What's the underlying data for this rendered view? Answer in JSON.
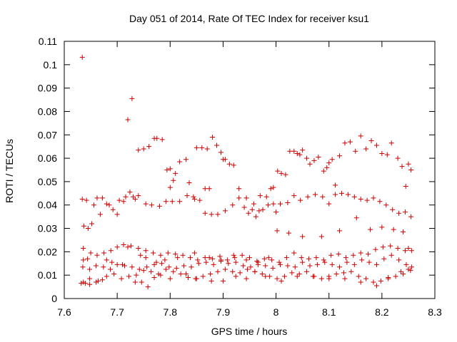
{
  "chart_data": {
    "type": "scatter",
    "title": "Day 051 of 2014, Rate Of TEC Index for receiver ksu1",
    "xlabel": "GPS time / hours",
    "ylabel": "ROTI / TECUs",
    "xlim": [
      7.6,
      8.3
    ],
    "ylim": [
      0,
      0.11
    ],
    "x_ticks": [
      7.6,
      7.7,
      7.8,
      7.9,
      8.0,
      8.1,
      8.2,
      8.3
    ],
    "x_tick_labels": [
      "7.6",
      "7.7",
      "7.8",
      "7.9",
      "8",
      "8.1",
      "8.2",
      "8.3"
    ],
    "y_ticks": [
      0,
      0.01,
      0.02,
      0.03,
      0.04,
      0.05,
      0.06,
      0.07,
      0.08,
      0.09,
      0.1,
      0.11
    ],
    "y_tick_labels": [
      "0",
      "0.01",
      "0.02",
      "0.03",
      "0.04",
      "0.05",
      "0.06",
      "0.07",
      "0.08",
      "0.09",
      "0.1",
      "0.11"
    ],
    "grid": false,
    "marker": "+",
    "color": "#cc0000",
    "series": [
      {
        "name": "ROTI",
        "x": [
          7.634,
          7.637,
          7.645,
          7.652,
          7.662,
          7.672,
          7.685,
          7.7,
          7.712,
          7.72,
          7.728,
          7.734,
          7.74,
          7.75,
          7.76,
          7.77,
          7.775,
          7.785,
          7.794,
          7.8,
          7.8,
          7.806,
          7.81,
          7.818,
          7.83,
          7.836,
          7.844,
          7.85,
          7.86,
          7.866,
          7.87,
          7.874,
          7.88,
          7.888,
          7.896,
          7.9,
          7.904,
          7.912,
          7.92,
          7.93,
          7.94,
          7.948,
          7.955,
          7.962,
          7.968,
          7.975,
          7.985,
          7.99,
          7.995,
          8.0,
          8.003,
          8.01,
          8.018,
          8.026,
          8.034,
          8.04,
          8.045,
          8.05,
          8.058,
          8.064,
          8.072,
          8.08,
          8.09,
          8.096,
          8.1,
          8.106,
          8.112,
          8.12,
          8.13,
          8.14,
          8.15,
          8.16,
          8.17,
          8.18,
          8.19,
          8.2,
          8.21,
          8.218,
          8.23,
          8.238,
          8.245,
          8.25,
          8.255,
          7.634,
          7.642,
          7.656,
          7.668,
          7.68,
          7.692,
          7.704,
          7.716,
          7.724,
          7.73,
          7.74,
          7.754,
          7.765,
          7.78,
          7.792,
          7.804,
          7.818,
          7.832,
          7.846,
          7.856,
          7.866,
          7.878,
          7.89,
          7.904,
          7.918,
          7.93,
          7.944,
          7.958,
          7.97,
          7.982,
          7.995,
          8.008,
          8.022,
          8.034,
          8.046,
          8.06,
          8.074,
          8.088,
          8.1,
          8.112,
          8.124,
          8.136,
          8.148,
          8.16,
          8.172,
          8.184,
          8.196,
          8.208,
          8.22,
          8.232,
          8.244,
          8.255,
          7.636,
          7.65,
          7.662,
          7.675,
          7.688,
          7.7,
          7.712,
          7.726,
          7.74,
          7.754,
          7.768,
          7.782,
          7.796,
          7.81,
          7.824,
          7.838,
          7.852,
          7.866,
          7.88,
          7.894,
          7.908,
          7.922,
          7.936,
          7.95,
          7.964,
          7.978,
          7.992,
          8.006,
          8.02,
          8.034,
          8.048,
          8.062,
          8.076,
          8.09,
          8.104,
          8.118,
          8.132,
          8.146,
          8.16,
          8.174,
          8.188,
          8.202,
          8.216,
          8.23,
          8.244,
          8.256,
          7.635,
          7.648,
          7.66,
          7.674,
          7.687,
          7.7,
          7.714,
          7.728,
          7.742,
          7.756,
          7.77,
          7.784,
          7.798,
          7.812,
          7.826,
          7.84,
          7.854,
          7.868,
          7.882,
          7.896,
          7.91,
          7.924,
          7.938,
          7.952,
          7.966,
          7.98,
          7.994,
          8.008,
          8.022,
          8.036,
          8.05,
          8.064,
          8.078,
          8.092,
          8.106,
          8.12,
          8.134,
          8.148,
          8.162,
          8.176,
          8.19,
          8.204,
          8.218,
          8.232,
          8.246,
          8.256,
          7.636,
          7.648,
          7.664,
          7.68,
          7.694,
          7.708,
          7.722,
          7.736,
          7.75,
          7.764,
          7.778,
          7.792,
          7.806,
          7.82,
          7.834,
          7.848,
          7.862,
          7.876,
          7.89,
          7.904,
          7.918,
          7.932,
          7.946,
          7.96,
          7.974,
          7.988,
          8.002,
          8.016,
          8.03,
          8.044,
          8.058,
          8.072,
          8.086,
          8.1,
          8.114,
          8.128,
          8.142,
          8.156,
          8.17,
          8.184,
          8.198,
          8.212,
          8.226,
          8.24,
          8.254,
          7.632,
          7.64,
          7.648,
          7.66,
          7.672,
          7.72,
          7.734,
          7.746,
          7.758,
          7.77,
          7.782,
          7.8,
          7.83,
          7.85,
          7.878,
          7.9,
          7.924,
          7.944,
          7.96,
          7.98,
          8.01,
          8.04,
          8.07,
          8.1,
          8.13,
          8.16,
          8.19,
          8.212,
          8.236,
          8.25,
          7.636,
          7.644,
          7.68,
          7.69,
          7.71,
          7.744,
          7.754,
          7.774,
          7.79,
          7.814,
          7.846,
          7.874,
          7.896,
          7.92,
          7.944,
          7.966,
          7.986,
          8.002,
          8.024,
          8.05,
          8.086,
          8.12,
          8.152,
          8.178,
          8.2,
          8.222,
          8.24,
          8.25
        ],
        "y": [
          0.1032,
          0.031,
          0.03,
          0.032,
          0.043,
          0.043,
          0.04,
          0.036,
          0.0415,
          0.0765,
          0.0855,
          0.0425,
          0.0635,
          0.064,
          0.065,
          0.0685,
          0.0685,
          0.068,
          0.055,
          0.0475,
          0.0555,
          0.0505,
          0.0535,
          0.0585,
          0.0595,
          0.0495,
          0.0435,
          0.0645,
          0.0645,
          0.047,
          0.064,
          0.047,
          0.069,
          0.0655,
          0.0625,
          0.0595,
          0.0595,
          0.0575,
          0.057,
          0.047,
          0.039,
          0.0365,
          0.038,
          0.035,
          0.0375,
          0.038,
          0.04,
          0.047,
          0.0475,
          0.037,
          0.0545,
          0.0535,
          0.053,
          0.063,
          0.063,
          0.062,
          0.0615,
          0.0635,
          0.06,
          0.0575,
          0.059,
          0.0605,
          0.0545,
          0.056,
          0.058,
          0.0595,
          0.0485,
          0.061,
          0.0665,
          0.067,
          0.063,
          0.0695,
          0.064,
          0.0675,
          0.0655,
          0.062,
          0.0615,
          0.0665,
          0.06,
          0.0565,
          0.048,
          0.0575,
          0.055,
          0.0425,
          0.042,
          0.04,
          0.036,
          0.0405,
          0.038,
          0.042,
          0.0435,
          0.0455,
          0.0435,
          0.044,
          0.0405,
          0.04,
          0.0395,
          0.0415,
          0.0415,
          0.0415,
          0.044,
          0.0425,
          0.042,
          0.0365,
          0.036,
          0.036,
          0.0375,
          0.04,
          0.043,
          0.043,
          0.0405,
          0.044,
          0.0435,
          0.0405,
          0.0405,
          0.041,
          0.044,
          0.042,
          0.0435,
          0.0445,
          0.0435,
          0.0405,
          0.0445,
          0.045,
          0.0445,
          0.0435,
          0.0425,
          0.042,
          0.043,
          0.0415,
          0.04,
          0.038,
          0.0365,
          0.037,
          0.035,
          0.0215,
          0.0195,
          0.0185,
          0.0195,
          0.0205,
          0.022,
          0.023,
          0.0225,
          0.0215,
          0.0205,
          0.0195,
          0.0185,
          0.0195,
          0.019,
          0.0185,
          0.0175,
          0.0165,
          0.0175,
          0.017,
          0.018,
          0.0165,
          0.0175,
          0.0185,
          0.0175,
          0.016,
          0.017,
          0.0165,
          0.0155,
          0.0175,
          0.0195,
          0.0175,
          0.017,
          0.0175,
          0.0165,
          0.0185,
          0.019,
          0.0175,
          0.0185,
          0.0195,
          0.019,
          0.021,
          0.022,
          0.0225,
          0.0215,
          0.0205,
          0.0205,
          0.0135,
          0.0125,
          0.014,
          0.0135,
          0.0125,
          0.0145,
          0.014,
          0.0135,
          0.0125,
          0.0135,
          0.0145,
          0.015,
          0.0135,
          0.013,
          0.014,
          0.0135,
          0.015,
          0.0155,
          0.0145,
          0.016,
          0.015,
          0.0155,
          0.014,
          0.0135,
          0.0145,
          0.014,
          0.013,
          0.0145,
          0.014,
          0.0135,
          0.0155,
          0.014,
          0.0145,
          0.0155,
          0.0145,
          0.0135,
          0.0155,
          0.0145,
          0.0165,
          0.0155,
          0.0145,
          0.017,
          0.0185,
          0.0165,
          0.0145,
          0.0135,
          0.007,
          0.0085,
          0.0075,
          0.0095,
          0.0105,
          0.0085,
          0.0095,
          0.01,
          0.012,
          0.0115,
          0.0105,
          0.0125,
          0.0115,
          0.0105,
          0.009,
          0.0085,
          0.0095,
          0.0105,
          0.0115,
          0.0125,
          0.0115,
          0.011,
          0.0125,
          0.0115,
          0.0105,
          0.0095,
          0.0085,
          0.0095,
          0.011,
          0.0105,
          0.0115,
          0.0095,
          0.0085,
          0.0095,
          0.0105,
          0.011,
          0.0115,
          0.0095,
          0.0085,
          0.007,
          0.0075,
          0.0085,
          0.0095,
          0.0105,
          0.012,
          0.0065,
          0.0065,
          0.006,
          0.007,
          0.008,
          0.022,
          0.007,
          0.007,
          0.005,
          0.009,
          0.01,
          0.0085,
          0.0105,
          0.0085,
          0.0075,
          0.0075,
          0.0095,
          0.0085,
          0.0115,
          0.0095,
          0.0075,
          0.0095,
          0.0095,
          0.0085,
          0.0085,
          0.007,
          0.0055,
          0.009,
          0.0115,
          0.0125,
          0.0165,
          0.017,
          0.0165,
          0.0155,
          0.0145,
          0.0185,
          0.0175,
          0.0155,
          0.0165,
          0.0175,
          0.0195,
          0.0175,
          0.0165,
          0.0185,
          0.0165,
          0.0155,
          0.0175,
          0.029,
          0.028,
          0.0265,
          0.0265,
          0.029,
          0.0345,
          0.0295,
          0.0305,
          0.0295,
          0.0285,
          0.0215
        ]
      }
    ]
  }
}
